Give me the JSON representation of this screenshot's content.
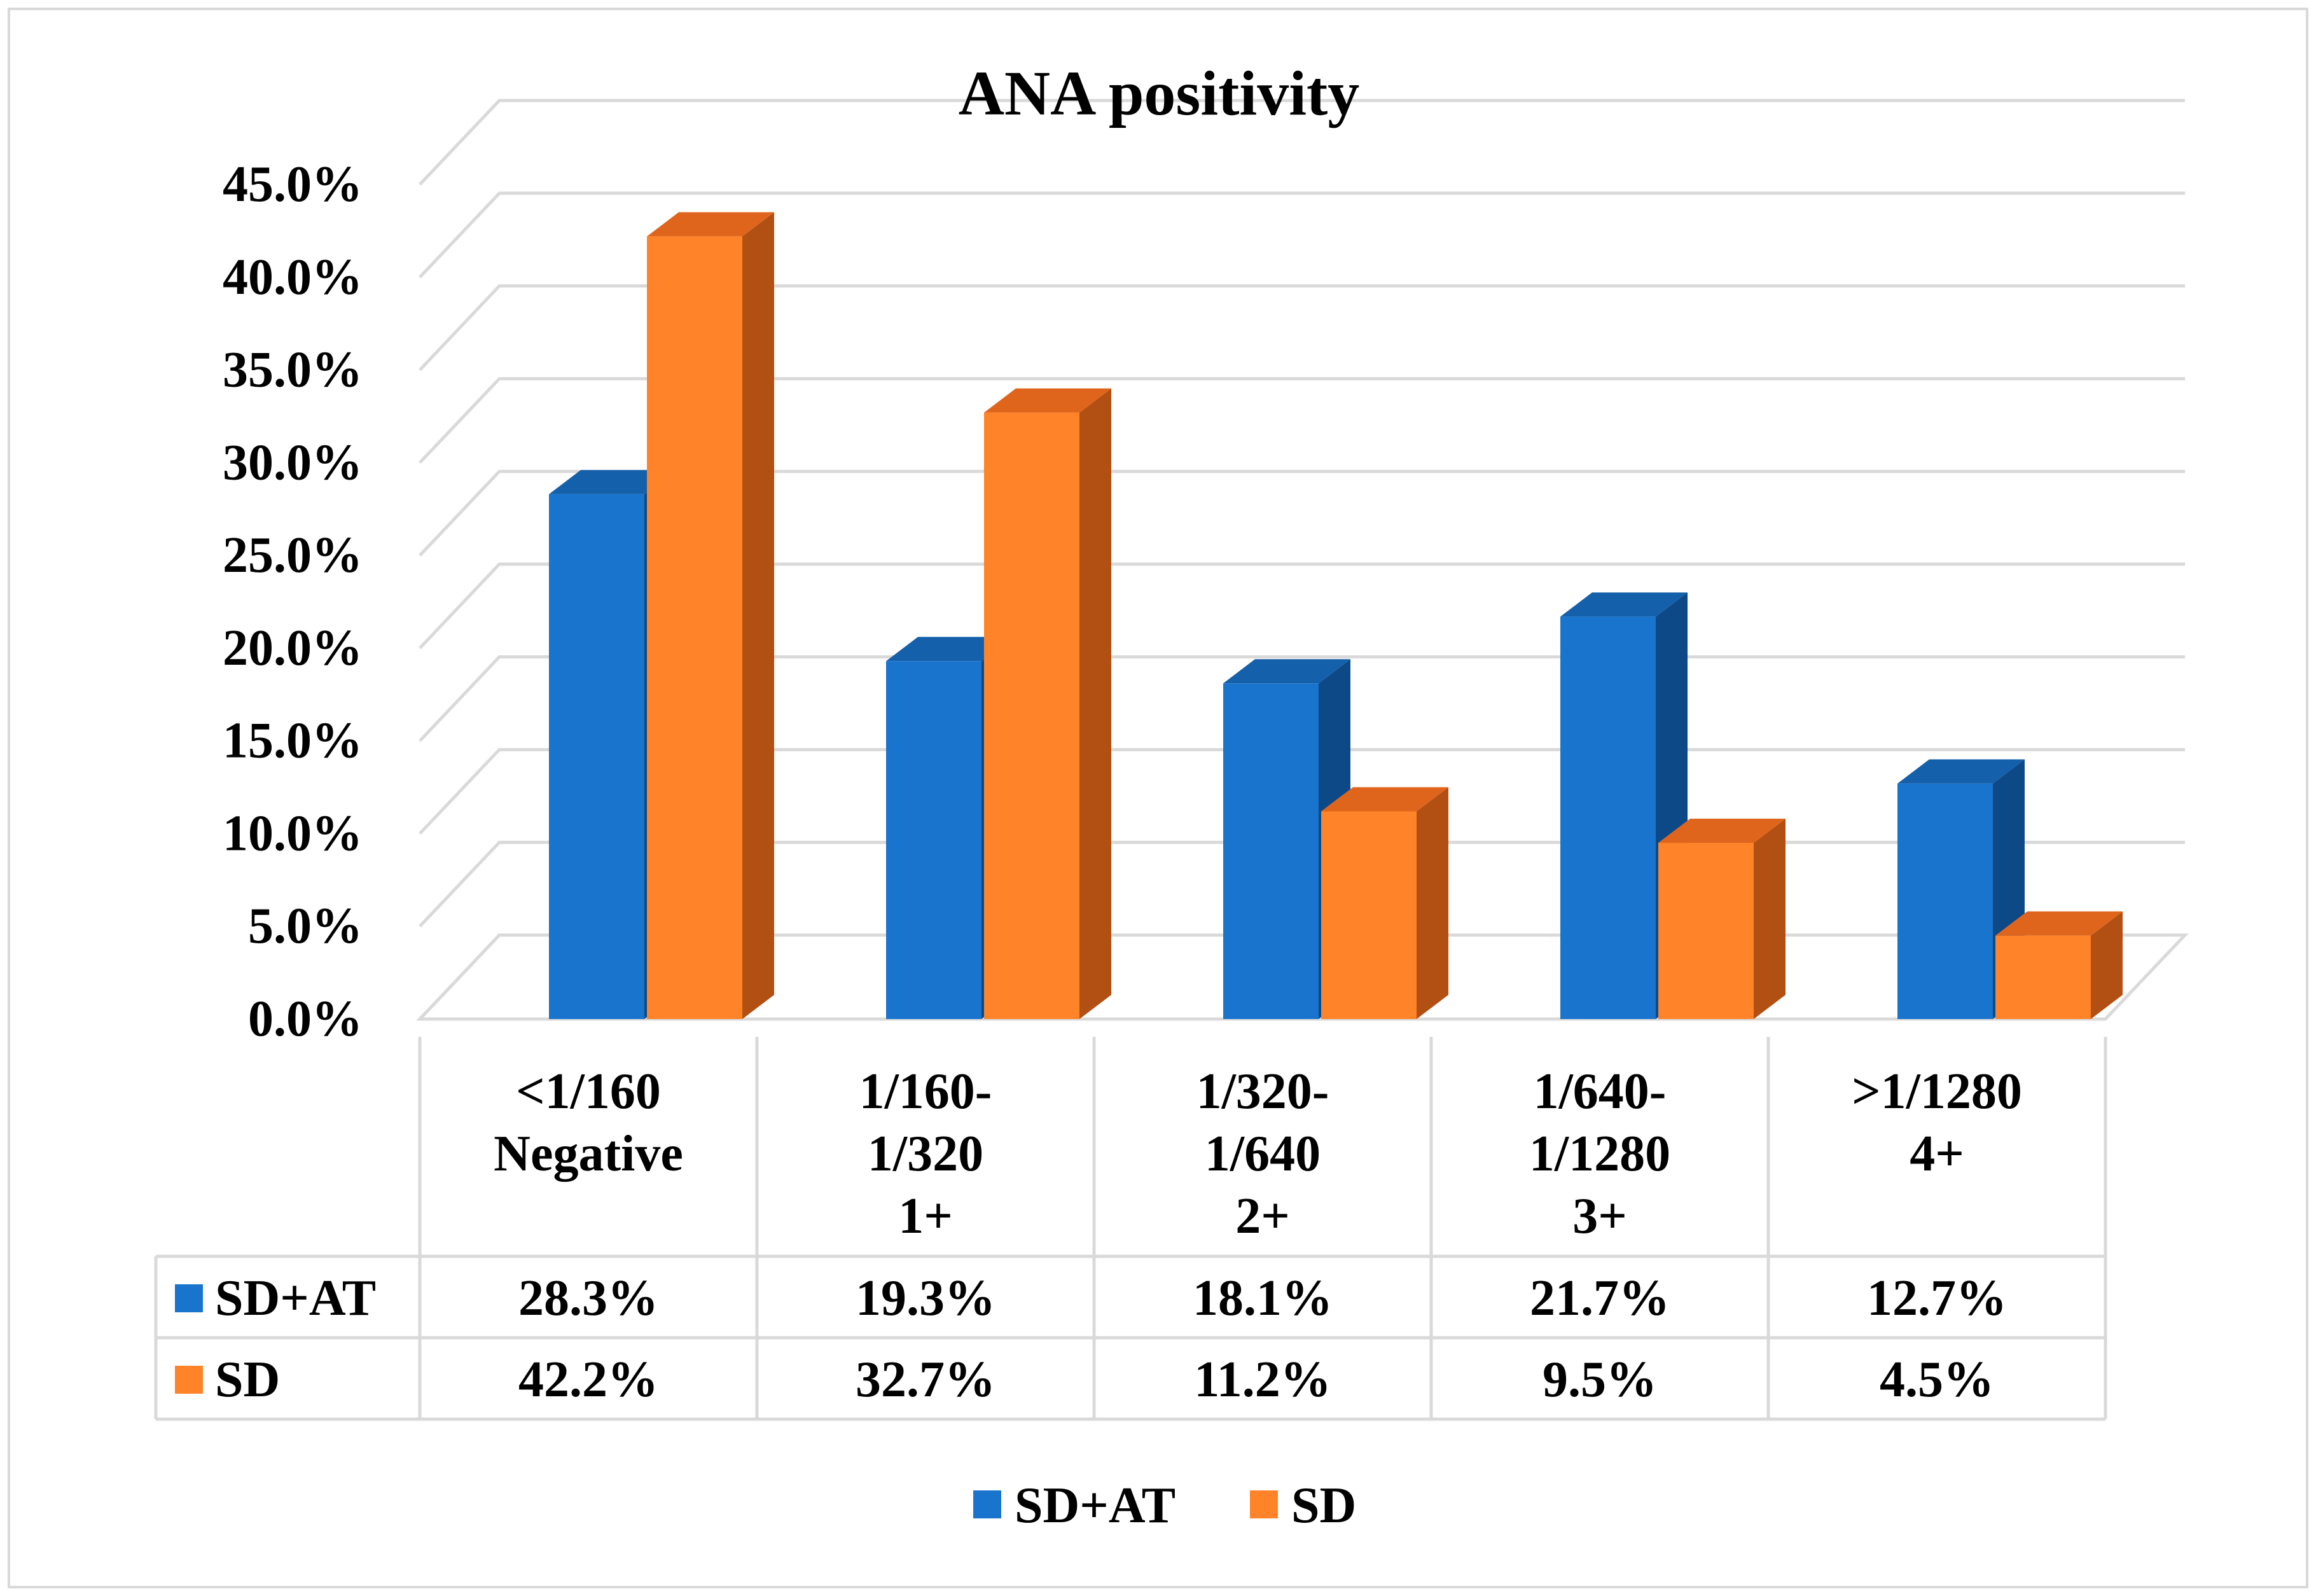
{
  "chart_data": {
    "type": "bar",
    "title": "ANA positivity",
    "categories": [
      [
        "<1/160",
        "Negative"
      ],
      [
        "1/160-",
        "1/320",
        "1+"
      ],
      [
        "1/320-",
        "1/640",
        "2+"
      ],
      [
        "1/640-",
        "1/1280",
        "3+"
      ],
      [
        ">1/1280",
        "4+"
      ]
    ],
    "series": [
      {
        "name": "SD+AT",
        "values": [
          28.3,
          19.3,
          18.1,
          21.7,
          12.7
        ],
        "labels": [
          "28.3%",
          "19.3%",
          "18.1%",
          "21.7%",
          "12.7%"
        ]
      },
      {
        "name": "SD",
        "values": [
          42.2,
          32.7,
          11.2,
          9.5,
          4.5
        ],
        "labels": [
          "42.2%",
          "32.7%",
          "11.2%",
          "9.5%",
          "4.5%"
        ]
      }
    ],
    "ylim": [
      0,
      45
    ],
    "ytick_labels": [
      "0.0%",
      "5.0%",
      "10.0%",
      "15.0%",
      "20.0%",
      "25.0%",
      "30.0%",
      "35.0%",
      "40.0%",
      "45.0%"
    ],
    "grid": true,
    "legend_position": "bottom",
    "data_table": true,
    "colors": {
      "SD+AT": {
        "front": "#1874CD",
        "side": "#0E4987",
        "top": "#1560AA"
      },
      "SD": {
        "front": "#FF8329",
        "side": "#B24F12",
        "top": "#E0651C"
      }
    }
  }
}
